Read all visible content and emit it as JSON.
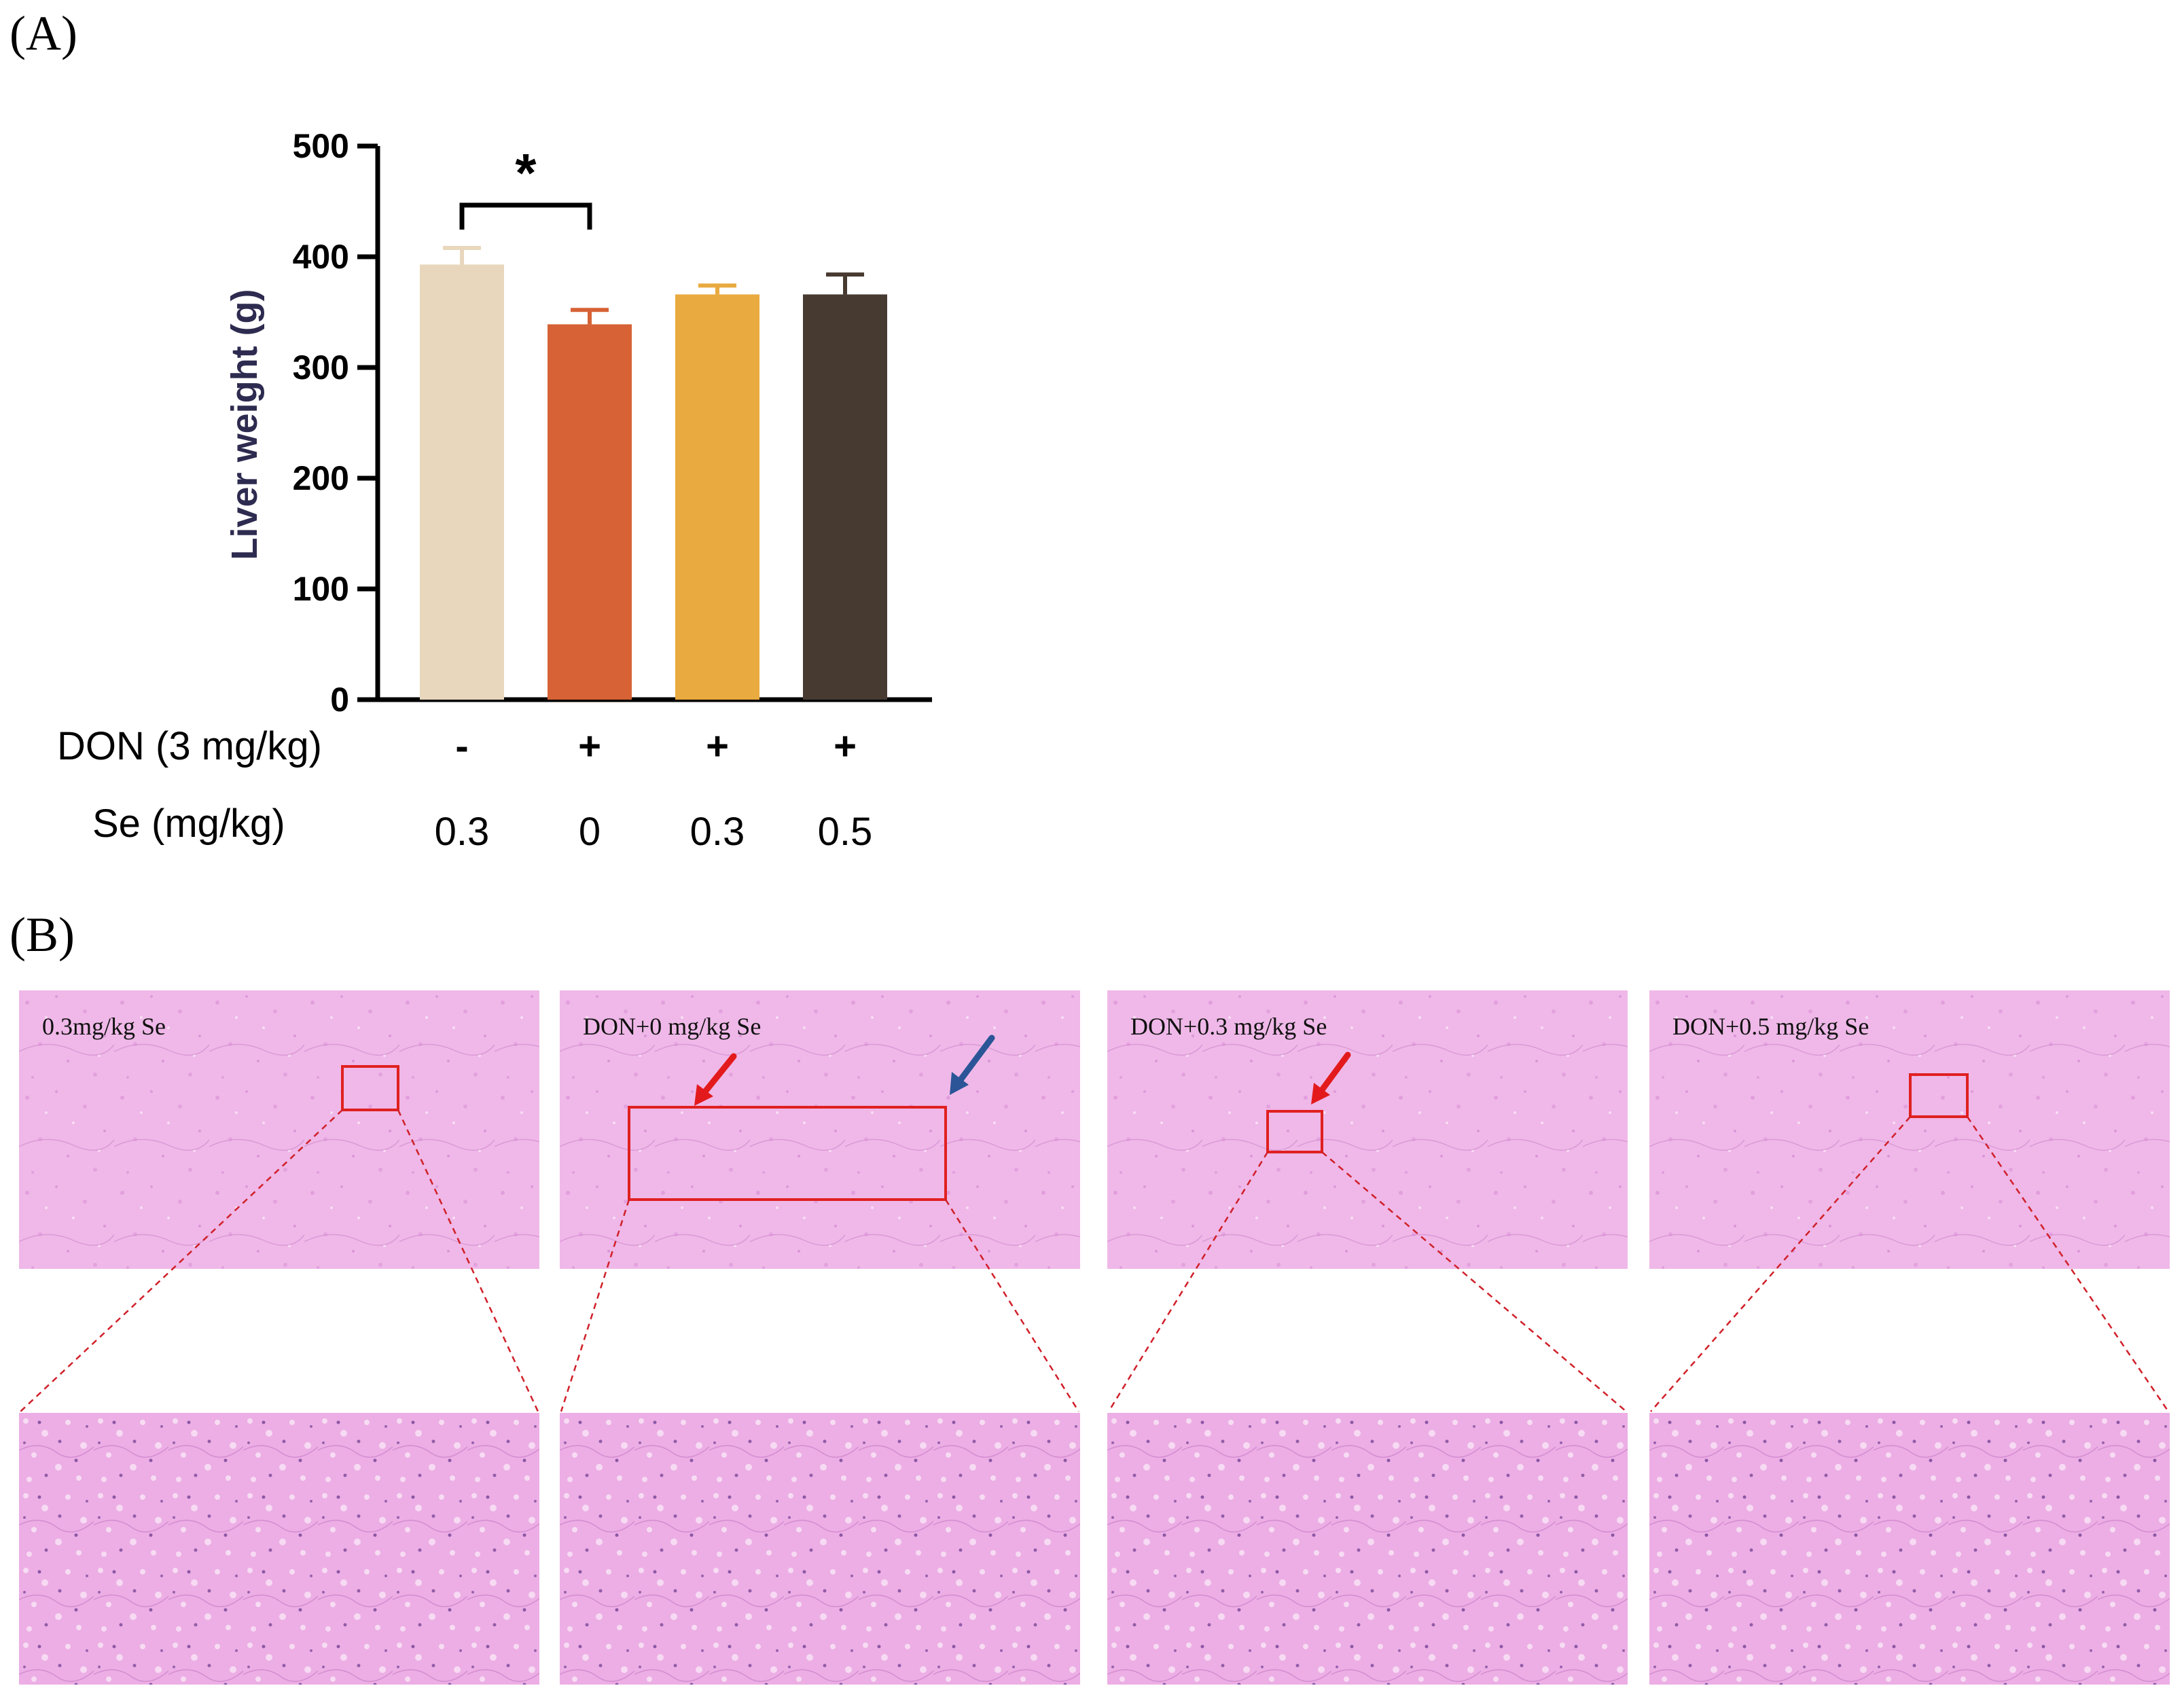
{
  "panels": {
    "a_label": "(A)",
    "b_label": "(B)"
  },
  "chart_data": {
    "type": "bar",
    "ylabel": "Liver weight (g)",
    "ylim": [
      0,
      500
    ],
    "yticks": [
      "0",
      "100",
      "200",
      "300",
      "400",
      "500"
    ],
    "categories": [
      "0.3 mg/kg Se",
      "DON+0 mg/kg Se",
      "DON+0.3 mg/kg Se",
      "DON+0.5 mg/kg Se"
    ],
    "values": [
      393,
      339,
      366,
      366
    ],
    "errors": [
      15,
      13,
      8,
      18
    ],
    "colors": [
      "#e8d7bc",
      "#d66235",
      "#e9aa3f",
      "#473a31"
    ],
    "significance": {
      "between": [
        0,
        1
      ],
      "label": "*"
    },
    "row_labels": {
      "don": "DON (3 mg/kg)",
      "se": "Se (mg/kg)"
    },
    "don_row": [
      "-",
      "+",
      "+",
      "+"
    ],
    "se_row": [
      "0.3",
      "0",
      "0.3",
      "0.5"
    ],
    "grid": false,
    "legend": "none"
  },
  "micrographs": [
    {
      "label": "0.3mg/kg Se"
    },
    {
      "label": "DON+0 mg/kg Se"
    },
    {
      "label": "DON+0.3 mg/kg Se"
    },
    {
      "label": "DON+0.5 mg/kg Se"
    }
  ],
  "colors": {
    "highlight": "#e02020",
    "red_arrow": "#e31a1c",
    "blue_arrow": "#2b5597",
    "tissue": "#efb8e8"
  }
}
